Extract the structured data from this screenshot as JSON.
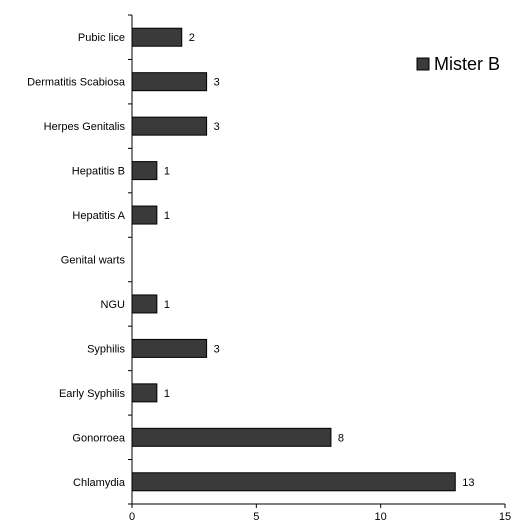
{
  "chart_data": {
    "type": "bar",
    "orientation": "horizontal",
    "title": "",
    "xlabel": "",
    "ylabel": "",
    "xlim": [
      0,
      15
    ],
    "x_ticks": [
      0,
      5,
      10,
      15
    ],
    "grid": false,
    "legend_position": "top-right",
    "categories": [
      "Pubic lice",
      "Dermatitis Scabiosa",
      "Herpes Genitalis",
      "Hepatitis B",
      "Hepatitis A",
      "Genital warts",
      "NGU",
      "Syphilis",
      "Early Syphilis",
      "Gonorroea",
      "Chlamydia"
    ],
    "series": [
      {
        "name": "Mister B",
        "color": "#3a3a3a",
        "values": [
          2,
          3,
          3,
          1,
          1,
          0,
          1,
          3,
          1,
          8,
          13
        ],
        "data_labels": [
          "2",
          "3",
          "3",
          "1",
          "1",
          "",
          "1",
          "3",
          "1",
          "8",
          "13"
        ]
      }
    ]
  }
}
